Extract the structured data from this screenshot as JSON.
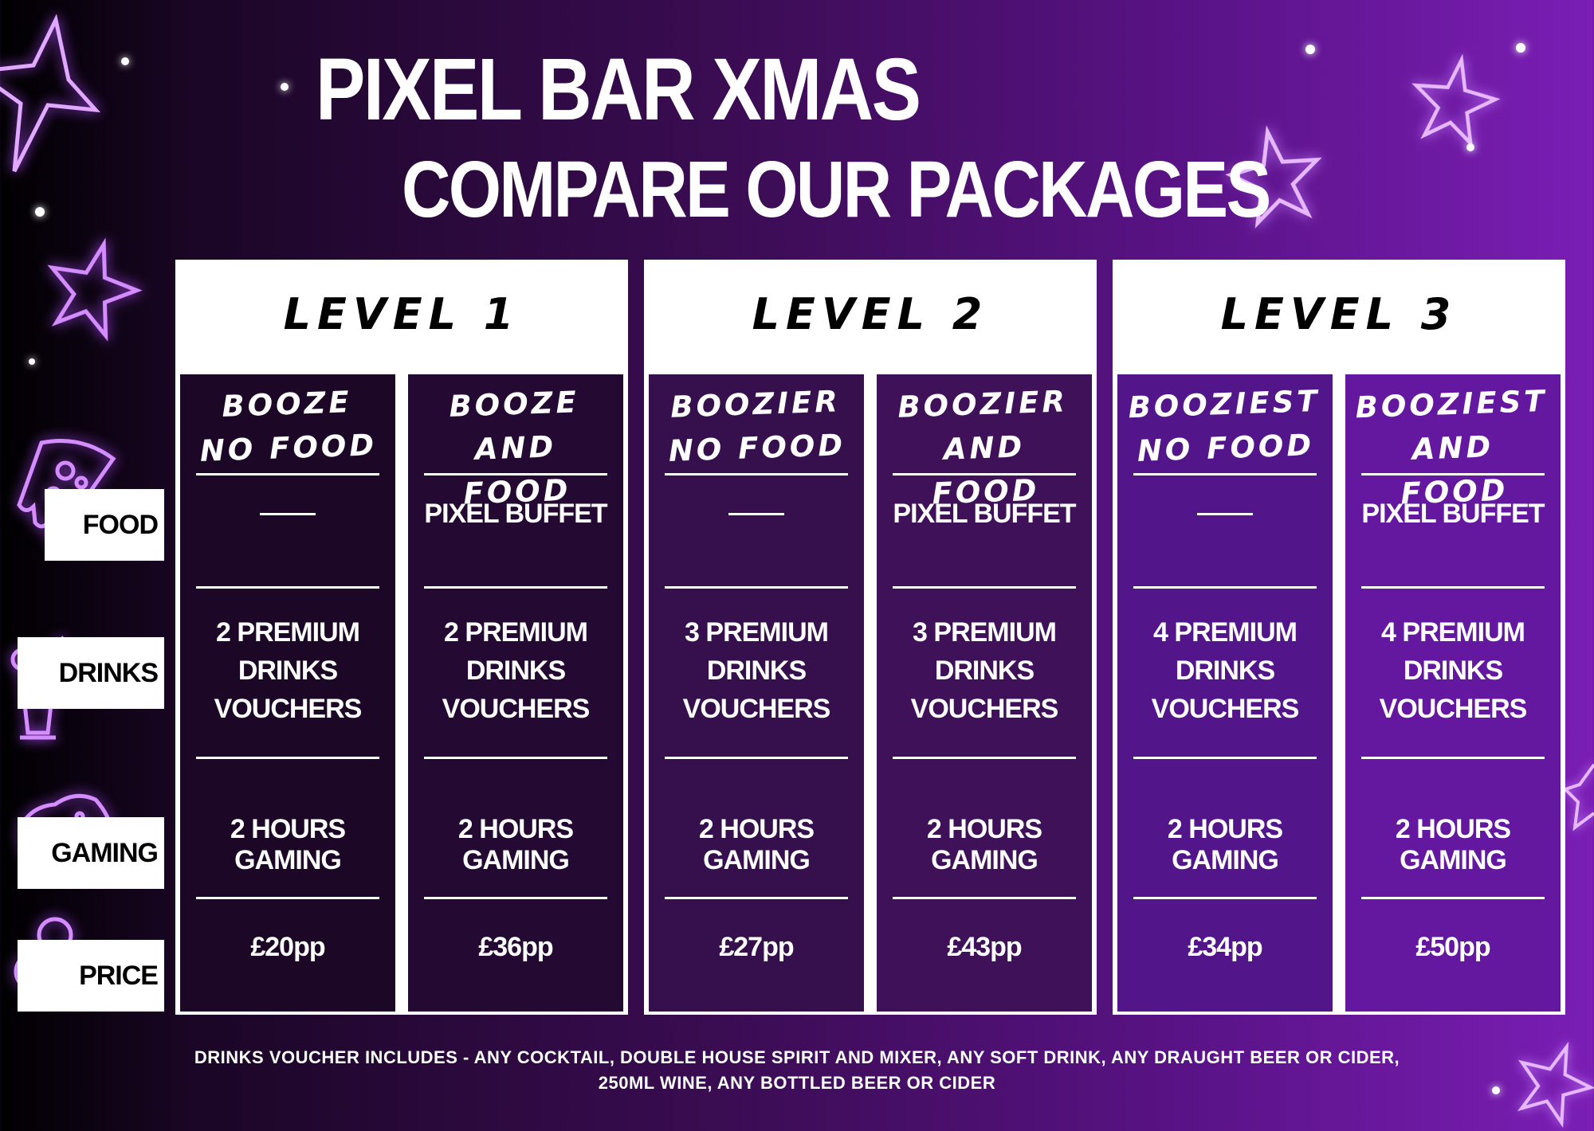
{
  "header": {
    "title": "PIXEL BAR XMAS",
    "subtitle": "COMPARE OUR PACKAGES"
  },
  "row_labels": {
    "food": "FOOD",
    "drinks": "DRINKS",
    "gaming": "GAMING",
    "price": "PRICE"
  },
  "levels": [
    {
      "title": "LEVEL 1",
      "packages": [
        {
          "name": "BOOZE\nNO FOOD",
          "food": "",
          "drinks_line1": "2 PREMIUM",
          "drinks_line2": "DRINKS",
          "drinks_line3": "VOUCHERS",
          "gaming": "2 HOURS GAMING",
          "price": "£20pp"
        },
        {
          "name": "BOOZE AND\nFOOD",
          "food": "PIXEL BUFFET",
          "drinks_line1": "2 PREMIUM",
          "drinks_line2": "DRINKS",
          "drinks_line3": "VOUCHERS",
          "gaming": "2 HOURS GAMING",
          "price": "£36pp"
        }
      ]
    },
    {
      "title": "LEVEL 2",
      "packages": [
        {
          "name": "BOOZIER\nNO FOOD",
          "food": "",
          "drinks_line1": "3 PREMIUM",
          "drinks_line2": "DRINKS",
          "drinks_line3": "VOUCHERS",
          "gaming": "2 HOURS GAMING",
          "price": "£27pp"
        },
        {
          "name": "BOOZIER AND\nFOOD",
          "food": "PIXEL BUFFET",
          "drinks_line1": "3 PREMIUM",
          "drinks_line2": "DRINKS",
          "drinks_line3": "VOUCHERS",
          "gaming": "2 HOURS GAMING",
          "price": "£43pp"
        }
      ]
    },
    {
      "title": "LEVEL 3",
      "packages": [
        {
          "name": "BOOZIEST\nNO FOOD",
          "food": "",
          "drinks_line1": "4 PREMIUM",
          "drinks_line2": "DRINKS",
          "drinks_line3": "VOUCHERS",
          "gaming": "2 HOURS GAMING",
          "price": "£34pp"
        },
        {
          "name": "BOOZIEST AND\nFOOD",
          "food": "PIXEL BUFFET",
          "drinks_line1": "4 PREMIUM",
          "drinks_line2": "DRINKS",
          "drinks_line3": "VOUCHERS",
          "gaming": "2 HOURS GAMING",
          "price": "£50pp"
        }
      ]
    }
  ],
  "footnote": {
    "line1": "DRINKS VOUCHER INCLUDES - ANY COCKTAIL, DOUBLE HOUSE SPIRIT AND MIXER, ANY SOFT DRINK, ANY DRAUGHT BEER OR CIDER,",
    "line2": "250ML WINE, ANY BOTTLED BEER OR CIDER"
  },
  "icons": [
    "star-icon",
    "pizza-icon",
    "cocktail-icon",
    "gamepad-icon",
    "coins-icon"
  ],
  "colors": {
    "neon": "#c77dff",
    "col_dark": "#1c0826",
    "col_mid": "#3d0f5a",
    "col_light": "#6418a0"
  }
}
